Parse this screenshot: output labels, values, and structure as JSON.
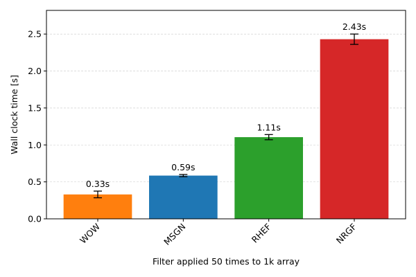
{
  "chart_data": {
    "type": "bar",
    "title": "",
    "xlabel": "Filter applied 50 times to 1k array",
    "ylabel": "Wall clock time [s]",
    "ylim": [
      0,
      2.82
    ],
    "yticks": [
      0.0,
      0.5,
      1.0,
      1.5,
      2.0,
      2.5
    ],
    "ytick_labels": [
      "0.0",
      "0.5",
      "1.0",
      "1.5",
      "2.0",
      "2.5"
    ],
    "grid": "horizontal dashed",
    "categories": [
      "WOW",
      "MSGN",
      "RHEF",
      "NRGF"
    ],
    "values": [
      0.33,
      0.585,
      1.105,
      2.43
    ],
    "errors": [
      0.045,
      0.015,
      0.035,
      0.07
    ],
    "data_labels": [
      "0.33s",
      "0.59s",
      "1.11s",
      "2.43s"
    ],
    "colors": [
      "#ff7f0e",
      "#1f77b4",
      "#2ca02c",
      "#d62728"
    ]
  }
}
